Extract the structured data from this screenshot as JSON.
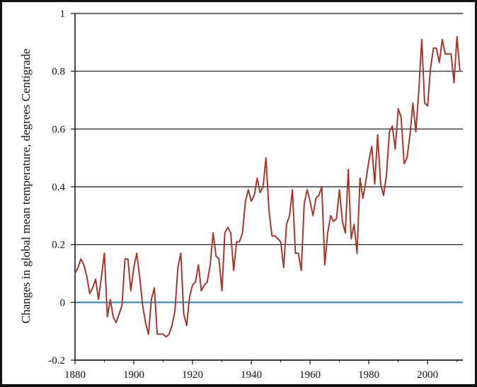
{
  "chart_data": {
    "type": "line",
    "title": "",
    "xlabel": "",
    "ylabel": "Changes in global mean temperature, degrees Centigrade",
    "xlim": [
      1880,
      2012
    ],
    "ylim": [
      -0.2,
      1.0
    ],
    "x_ticks": [
      "1880",
      "1900",
      "1920",
      "1940",
      "1960",
      "1980",
      "2000"
    ],
    "y_ticks": [
      "-0.2",
      "0",
      "0.2",
      "0.4",
      "0.6",
      "0.8",
      "1"
    ],
    "grid": "horizontal",
    "legend": "none",
    "colors": {
      "series": "#a03a2e",
      "zero_line": "#2f7fb5",
      "grid": "#111111"
    },
    "series": [
      {
        "x": [
          1880,
          1881,
          1882,
          1883,
          1884,
          1885,
          1886,
          1887,
          1888,
          1889,
          1890,
          1891,
          1892,
          1893,
          1894,
          1895,
          1896,
          1897,
          1898,
          1899,
          1900,
          1901,
          1902,
          1903,
          1904,
          1905,
          1906,
          1907,
          1908,
          1909,
          1910,
          1911,
          1912,
          1913,
          1914,
          1915,
          1916,
          1917,
          1918,
          1919,
          1920,
          1921,
          1922,
          1923,
          1924,
          1925,
          1926,
          1927,
          1928,
          1929,
          1930,
          1931,
          1932,
          1933,
          1934,
          1935,
          1936,
          1937,
          1938,
          1939,
          1940,
          1941,
          1942,
          1943,
          1944,
          1945,
          1946,
          1947,
          1948,
          1949,
          1950,
          1951,
          1952,
          1953,
          1954,
          1955,
          1956,
          1957,
          1958,
          1959,
          1960,
          1961,
          1962,
          1963,
          1964,
          1965,
          1966,
          1967,
          1968,
          1969,
          1970,
          1971,
          1972,
          1973,
          1974,
          1975,
          1976,
          1977,
          1978,
          1979,
          1980,
          1981,
          1982,
          1983,
          1984,
          1985,
          1986,
          1987,
          1988,
          1989,
          1990,
          1991,
          1992,
          1993,
          1994,
          1995,
          1996,
          1997,
          1998,
          1999,
          2000,
          2001,
          2002,
          2003,
          2004,
          2005,
          2006,
          2007,
          2008,
          2009,
          2010,
          2011
        ],
        "values": [
          0.1,
          0.12,
          0.15,
          0.13,
          0.09,
          0.03,
          0.05,
          0.08,
          0.01,
          0.09,
          0.17,
          -0.05,
          0.01,
          -0.05,
          -0.07,
          -0.04,
          -0.01,
          0.15,
          0.15,
          0.04,
          0.12,
          0.17,
          0.09,
          -0.01,
          -0.07,
          -0.11,
          0.01,
          0.05,
          -0.11,
          -0.11,
          -0.11,
          -0.12,
          -0.11,
          -0.08,
          -0.03,
          0.12,
          0.17,
          -0.04,
          -0.08,
          0.02,
          0.06,
          0.07,
          0.13,
          0.04,
          0.06,
          0.07,
          0.13,
          0.24,
          0.16,
          0.15,
          0.04,
          0.24,
          0.26,
          0.24,
          0.11,
          0.21,
          0.21,
          0.24,
          0.35,
          0.39,
          0.35,
          0.37,
          0.43,
          0.38,
          0.4,
          0.5,
          0.32,
          0.23,
          0.23,
          0.22,
          0.21,
          0.12,
          0.27,
          0.3,
          0.39,
          0.17,
          0.17,
          0.11,
          0.34,
          0.39,
          0.35,
          0.3,
          0.36,
          0.37,
          0.4,
          0.13,
          0.24,
          0.3,
          0.28,
          0.29,
          0.39,
          0.28,
          0.24,
          0.46,
          0.22,
          0.27,
          0.17,
          0.43,
          0.36,
          0.42,
          0.49,
          0.54,
          0.41,
          0.58,
          0.41,
          0.37,
          0.44,
          0.59,
          0.61,
          0.53,
          0.67,
          0.64,
          0.48,
          0.5,
          0.58,
          0.69,
          0.59,
          0.73,
          0.91,
          0.69,
          0.68,
          0.81,
          0.88,
          0.88,
          0.83,
          0.91,
          0.86,
          0.86,
          0.86,
          0.76,
          0.92,
          0.8
        ]
      }
    ]
  }
}
